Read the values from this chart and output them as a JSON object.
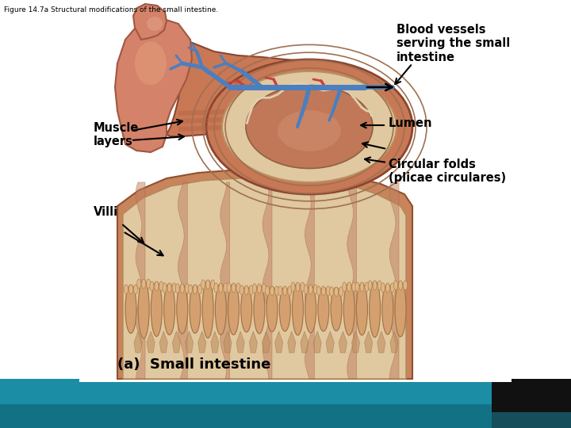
{
  "title": "Figure 14.7a Structural modifications of the small intestine.",
  "title_fontsize": 6.5,
  "caption": "(a)  Small intestine",
  "caption_fontsize": 13,
  "background_color": "#ffffff",
  "teal_color": "#1b8ea6",
  "teal_dark": "#0e5f72",
  "black_color": "#111111",
  "label_fontsize": 10.5,
  "fig_width": 7.2,
  "fig_height": 5.4,
  "dpi": 100,
  "labels": {
    "blood_vessels": "Blood vessels\nserving the small\nintestine",
    "muscle_layers": "Muscle\nlayers",
    "villi": "Villi",
    "lumen": "Lumen",
    "circular_folds": "Circular folds\n(plicae circulares)"
  },
  "vessel_blue": "#4a7fc1",
  "vessel_red": "#c84040",
  "intestine_salmon": "#d48060",
  "intestine_light": "#e8b898",
  "cream_wall": "#e8d5b0",
  "muscle_dark": "#b06050",
  "villi_tan": "#d4a070",
  "villi_cream": "#ecdcc0"
}
